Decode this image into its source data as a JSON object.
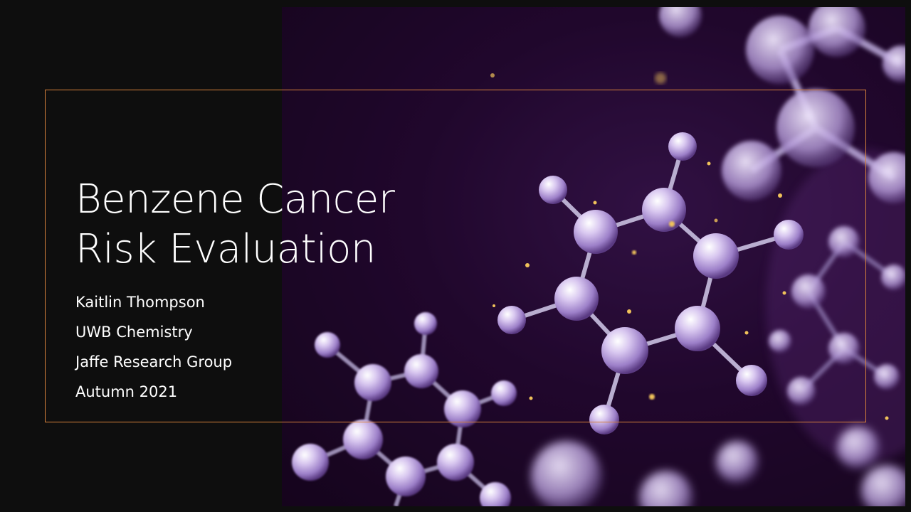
{
  "slide": {
    "title_lines": [
      "Benzene Cancer",
      "Risk Evaluation"
    ],
    "subtitle_lines": [
      "Kaitlin Thompson",
      "UWB Chemistry",
      "Jaffe Research Group",
      "Autumn 2021"
    ],
    "image": {
      "subject": "molecule-image",
      "colors": {
        "background": "#22082f",
        "atom": "#c9b6e6",
        "bond": "#a99cc4",
        "sparkle": "#e8b54a"
      }
    },
    "colors": {
      "frame": "#d9823b",
      "slide_background": "#0e0e0e",
      "text": "#ffffff"
    }
  }
}
